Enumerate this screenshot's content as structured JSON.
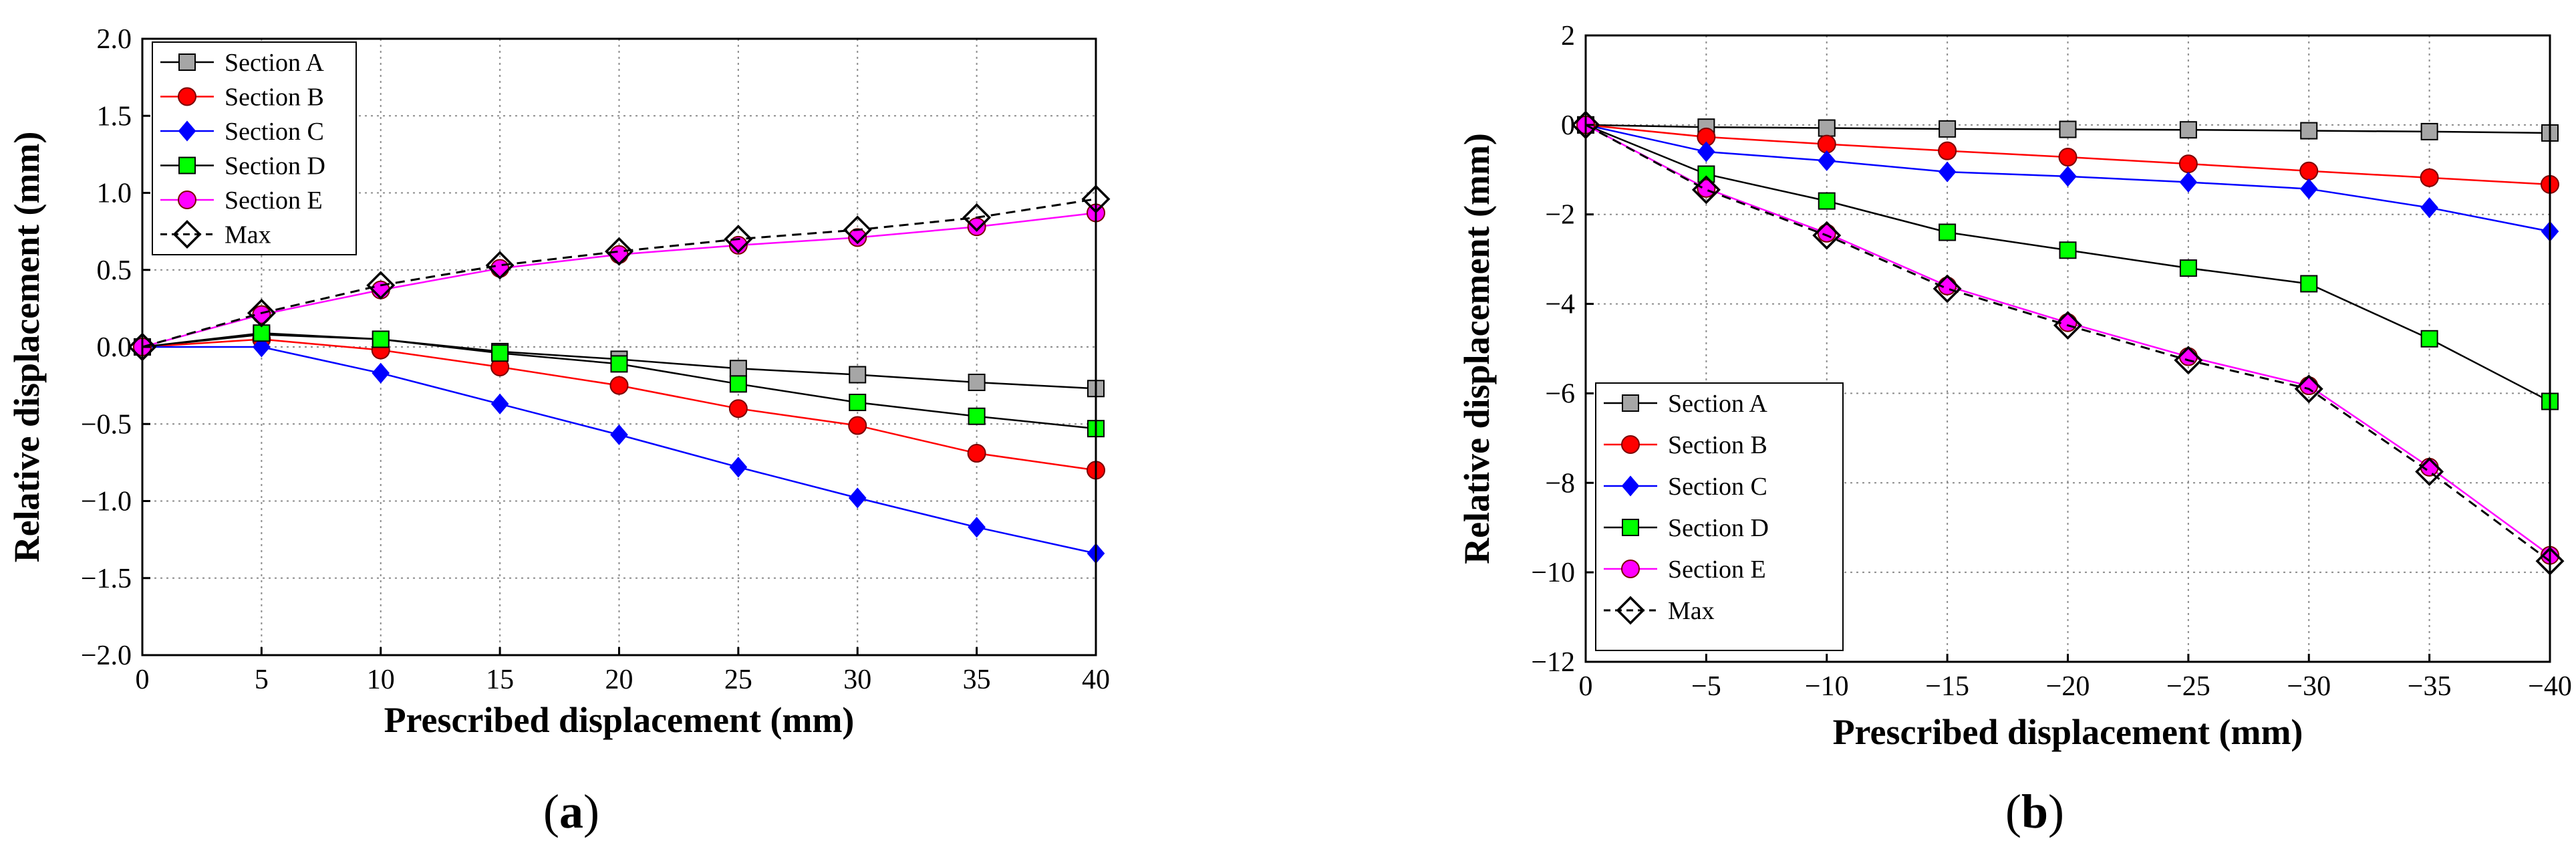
{
  "chart_data": [
    {
      "id": "a",
      "type": "line",
      "caption_letter": "a",
      "xlabel": "Prescribed displacement (mm)",
      "ylabel": "Relative displacement (mm)",
      "xlim": [
        0,
        40
      ],
      "ylim": [
        -2.0,
        2.0
      ],
      "x_ticks": [
        "0",
        "5",
        "10",
        "15",
        "20",
        "25",
        "30",
        "35",
        "40"
      ],
      "y_ticks": [
        "−2.0",
        "−1.5",
        "−1.0",
        "−0.5",
        "0.0",
        "0.5",
        "1.0",
        "1.5",
        "2.0"
      ],
      "grid": true,
      "legend_position": "top-left",
      "x": [
        0,
        5,
        10,
        15,
        20,
        25,
        30,
        35,
        40
      ],
      "series": [
        {
          "name": "Section A",
          "values": [
            0,
            0.08,
            0.05,
            -0.03,
            -0.08,
            -0.14,
            -0.18,
            -0.23,
            -0.27
          ],
          "color": "#000000",
          "marker": "square",
          "marker_fill": "#a6a6a6",
          "dashed": false
        },
        {
          "name": "Section B",
          "values": [
            0,
            0.05,
            -0.02,
            -0.13,
            -0.25,
            -0.4,
            -0.51,
            -0.69,
            -0.8
          ],
          "color": "#ff0000",
          "marker": "circle",
          "marker_fill": "#ff0000",
          "dashed": false
        },
        {
          "name": "Section C",
          "values": [
            0,
            0.0,
            -0.17,
            -0.37,
            -0.57,
            -0.78,
            -0.98,
            -1.17,
            -1.34
          ],
          "color": "#0000ff",
          "marker": "diamond",
          "marker_fill": "#0000ff",
          "dashed": false
        },
        {
          "name": "Section D",
          "values": [
            0,
            0.09,
            0.05,
            -0.04,
            -0.11,
            -0.24,
            -0.36,
            -0.45,
            -0.53
          ],
          "color": "#000000",
          "marker": "square",
          "marker_fill": "#00ff00",
          "dashed": false
        },
        {
          "name": "Section E",
          "values": [
            0,
            0.21,
            0.37,
            0.51,
            0.6,
            0.66,
            0.71,
            0.78,
            0.87
          ],
          "color": "#ff00ff",
          "marker": "circle",
          "marker_fill": "#ff00ff",
          "dashed": false
        },
        {
          "name": "Max",
          "values": [
            0,
            0.22,
            0.4,
            0.53,
            0.62,
            0.7,
            0.76,
            0.84,
            0.96
          ],
          "color": "#000000",
          "marker": "diamond-open",
          "marker_fill": "none",
          "dashed": true
        }
      ]
    },
    {
      "id": "b",
      "type": "line",
      "caption_letter": "b",
      "xlabel": "Prescribed displacement (mm)",
      "ylabel": "Relative displacement (mm)",
      "xlim": [
        0,
        -40
      ],
      "ylim": [
        -12,
        2
      ],
      "x_ticks": [
        "0",
        "−5",
        "−10",
        "−15",
        "−20",
        "−25",
        "−30",
        "−35",
        "−40"
      ],
      "y_ticks": [
        "−12",
        "−10",
        "−8",
        "−6",
        "−4",
        "−2",
        "0",
        "2"
      ],
      "grid": true,
      "legend_position": "bottom-left",
      "x": [
        0,
        -5,
        -10,
        -15,
        -20,
        -25,
        -30,
        -35,
        -40
      ],
      "series": [
        {
          "name": "Section A",
          "values": [
            0,
            -0.05,
            -0.07,
            -0.09,
            -0.1,
            -0.11,
            -0.13,
            -0.15,
            -0.18
          ],
          "color": "#000000",
          "marker": "square",
          "marker_fill": "#a6a6a6",
          "dashed": false
        },
        {
          "name": "Section B",
          "values": [
            0,
            -0.27,
            -0.43,
            -0.58,
            -0.72,
            -0.87,
            -1.03,
            -1.18,
            -1.33
          ],
          "color": "#ff0000",
          "marker": "circle",
          "marker_fill": "#ff0000",
          "dashed": false
        },
        {
          "name": "Section C",
          "values": [
            0,
            -0.6,
            -0.8,
            -1.05,
            -1.15,
            -1.28,
            -1.43,
            -1.85,
            -2.38
          ],
          "color": "#0000ff",
          "marker": "diamond",
          "marker_fill": "#0000ff",
          "dashed": false
        },
        {
          "name": "Section D",
          "values": [
            0,
            -1.1,
            -1.7,
            -2.4,
            -2.8,
            -3.2,
            -3.55,
            -4.78,
            -6.18
          ],
          "color": "#000000",
          "marker": "square",
          "marker_fill": "#00ff00",
          "dashed": false
        },
        {
          "name": "Section E",
          "values": [
            0,
            -1.42,
            -2.42,
            -3.6,
            -4.42,
            -5.18,
            -5.83,
            -7.65,
            -9.62
          ],
          "color": "#ff00ff",
          "marker": "circle",
          "marker_fill": "#ff00ff",
          "dashed": false
        },
        {
          "name": "Max",
          "values": [
            0,
            -1.45,
            -2.47,
            -3.66,
            -4.48,
            -5.26,
            -5.9,
            -7.75,
            -9.75
          ],
          "color": "#000000",
          "marker": "diamond-open",
          "marker_fill": "none",
          "dashed": true
        }
      ]
    }
  ]
}
